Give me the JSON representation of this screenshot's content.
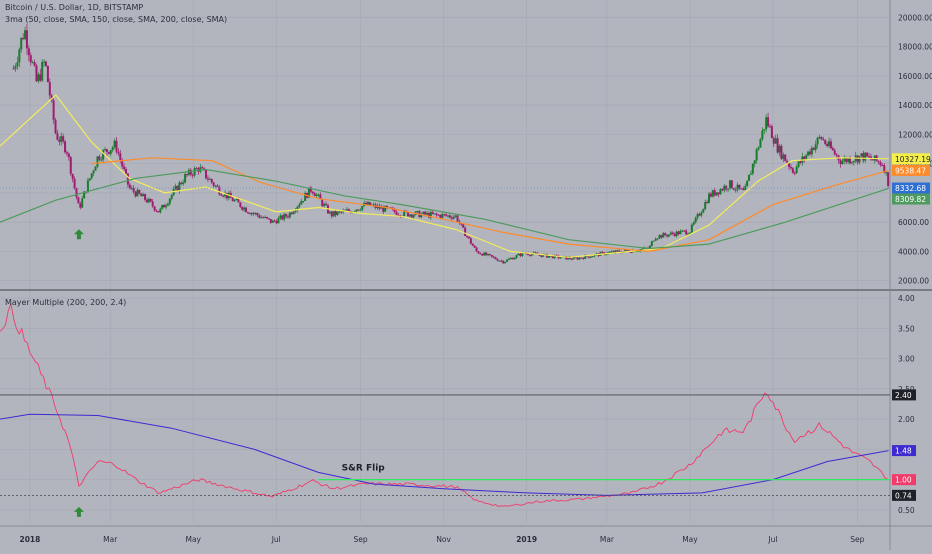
{
  "price_pane": {
    "title": "Bitcoin / U.S. Dollar, 1D, BITSTAMP",
    "indicator": "3ma (50, close, SMA, 150, close, SMA, 200, close, SMA)"
  },
  "mayer_pane": {
    "indicator": "Mayer Multiple (200, 200, 2.4)",
    "annotation": "S&R Flip"
  },
  "colors": {
    "background": "#b2b5be",
    "candle_up": "#1a7a2e",
    "candle_down": "#9c1d6e",
    "sma50": "#f3ec5a",
    "sma150": "#ff8a2a",
    "sma200": "#4f9a5e",
    "mayer_line": "#f23a6a",
    "mayer_ma": "#3d2bd0",
    "sr_line": "#2ee85c",
    "arrow": "#2e8b3a"
  },
  "chart_data": [
    {
      "type": "candlestick",
      "title": "Bitcoin / U.S. Dollar, 1D, BITSTAMP",
      "x_ticks": [
        "2018",
        "Mar",
        "May",
        "Jul",
        "Sep",
        "Nov",
        "2019",
        "Mar",
        "May",
        "Jul",
        "Sep"
      ],
      "y_ticks": [
        "20000.00",
        "18000.00",
        "16000.00",
        "14000.00",
        "12000.00",
        "10000.00",
        "8000.00",
        "6000.00",
        "4000.00",
        "2000.00"
      ],
      "ylim": [
        1500,
        20500
      ],
      "price_path": [
        [
          "2017-12-20",
          16500
        ],
        [
          "2017-12-28",
          19200
        ],
        [
          "2018-01-06",
          15500
        ],
        [
          "2018-01-12",
          17000
        ],
        [
          "2018-01-20",
          12000
        ],
        [
          "2018-01-28",
          11000
        ],
        [
          "2018-02-06",
          6900
        ],
        [
          "2018-02-12",
          8500
        ],
        [
          "2018-02-20",
          10500
        ],
        [
          "2018-03-05",
          11300
        ],
        [
          "2018-03-15",
          8300
        ],
        [
          "2018-03-28",
          7500
        ],
        [
          "2018-04-06",
          6700
        ],
        [
          "2018-04-25",
          9100
        ],
        [
          "2018-05-05",
          9700
        ],
        [
          "2018-05-20",
          8200
        ],
        [
          "2018-06-10",
          6800
        ],
        [
          "2018-06-28",
          6000
        ],
        [
          "2018-07-10",
          6500
        ],
        [
          "2018-07-27",
          8300
        ],
        [
          "2018-08-10",
          6500
        ],
        [
          "2018-08-25",
          6800
        ],
        [
          "2018-09-05",
          7200
        ],
        [
          "2018-10-01",
          6600
        ],
        [
          "2018-11-10",
          6400
        ],
        [
          "2018-11-15",
          5500
        ],
        [
          "2018-11-25",
          4000
        ],
        [
          "2018-12-15",
          3300
        ],
        [
          "2018-12-30",
          3900
        ],
        [
          "2019-01-15",
          3700
        ],
        [
          "2019-02-05",
          3500
        ],
        [
          "2019-03-01",
          3900
        ],
        [
          "2019-04-01",
          4200
        ],
        [
          "2019-04-05",
          5000
        ],
        [
          "2019-05-01",
          5400
        ],
        [
          "2019-05-15",
          7800
        ],
        [
          "2019-05-30",
          8600
        ],
        [
          "2019-06-10",
          8000
        ],
        [
          "2019-06-26",
          13000
        ],
        [
          "2019-07-05",
          11000
        ],
        [
          "2019-07-16",
          9500
        ],
        [
          "2019-08-05",
          11800
        ],
        [
          "2019-08-20",
          10200
        ],
        [
          "2019-09-05",
          10500
        ],
        [
          "2019-09-20",
          10000
        ],
        [
          "2019-09-24",
          8600
        ]
      ],
      "series": [
        {
          "name": "SMA 50",
          "values": [
            [
              "2017-12-10",
              11200
            ],
            [
              "2018-01-20",
              14700
            ],
            [
              "2018-02-15",
              11500
            ],
            [
              "2018-03-15",
              9000
            ],
            [
              "2018-04-10",
              8000
            ],
            [
              "2018-05-10",
              8400
            ],
            [
              "2018-06-10",
              7400
            ],
            [
              "2018-07-01",
              6700
            ],
            [
              "2018-08-01",
              7000
            ],
            [
              "2018-09-01",
              6600
            ],
            [
              "2018-10-01",
              6400
            ],
            [
              "2018-11-10",
              5500
            ],
            [
              "2018-12-20",
              4000
            ],
            [
              "2019-02-01",
              3600
            ],
            [
              "2019-04-10",
              4200
            ],
            [
              "2019-05-15",
              5800
            ],
            [
              "2019-06-20",
              8800
            ],
            [
              "2019-07-15",
              10200
            ],
            [
              "2019-08-20",
              10400
            ],
            [
              "2019-09-24",
              10327.19
            ]
          ]
        },
        {
          "name": "SMA 150",
          "values": [
            [
              "2018-02-15",
              10000
            ],
            [
              "2018-04-01",
              10400
            ],
            [
              "2018-05-15",
              10200
            ],
            [
              "2018-06-20",
              8700
            ],
            [
              "2018-08-01",
              7600
            ],
            [
              "2018-09-20",
              7000
            ],
            [
              "2018-11-01",
              6200
            ],
            [
              "2018-12-15",
              5300
            ],
            [
              "2019-02-01",
              4500
            ],
            [
              "2019-04-01",
              4000
            ],
            [
              "2019-05-15",
              4800
            ],
            [
              "2019-07-01",
              7200
            ],
            [
              "2019-08-15",
              8500
            ],
            [
              "2019-09-24",
              9538.47
            ]
          ]
        },
        {
          "name": "SMA 200",
          "values": [
            [
              "2017-12-10",
              6000
            ],
            [
              "2018-01-20",
              7500
            ],
            [
              "2018-03-20",
              9000
            ],
            [
              "2018-05-10",
              9600
            ],
            [
              "2018-07-01",
              8800
            ],
            [
              "2018-08-20",
              7800
            ],
            [
              "2018-10-01",
              7200
            ],
            [
              "2018-12-01",
              6200
            ],
            [
              "2019-02-01",
              4800
            ],
            [
              "2019-04-01",
              4200
            ],
            [
              "2019-05-15",
              4500
            ],
            [
              "2019-07-10",
              6000
            ],
            [
              "2019-08-25",
              7400
            ],
            [
              "2019-09-24",
              8309.82
            ]
          ]
        }
      ],
      "last_price_label": "8332.68",
      "price_labels": [
        "10327.19",
        "9538.47",
        "8332.68",
        "8309.82"
      ],
      "marker": {
        "date": "2018-02-06",
        "type": "up-arrow"
      }
    },
    {
      "type": "line",
      "title": "Mayer Multiple (200, 200, 2.4)",
      "y_ticks": [
        "4.00",
        "3.50",
        "3.00",
        "2.50",
        "2.00",
        "1.50",
        "1.00",
        "0.50"
      ],
      "ylim": [
        0.3,
        4.1
      ],
      "series": [
        {
          "name": "Mayer Multiple",
          "values": [
            [
              "2017-12-10",
              3.5
            ],
            [
              "2017-12-18",
              3.8
            ],
            [
              "2017-12-28",
              3.3
            ],
            [
              "2018-01-10",
              2.7
            ],
            [
              "2018-01-20",
              2.2
            ],
            [
              "2018-01-30",
              1.6
            ],
            [
              "2018-02-06",
              0.9
            ],
            [
              "2018-02-20",
              1.3
            ],
            [
              "2018-03-05",
              1.25
            ],
            [
              "2018-03-20",
              1.0
            ],
            [
              "2018-04-06",
              0.78
            ],
            [
              "2018-05-05",
              1.0
            ],
            [
              "2018-06-01",
              0.85
            ],
            [
              "2018-06-28",
              0.72
            ],
            [
              "2018-07-28",
              0.98
            ],
            [
              "2018-08-12",
              0.85
            ],
            [
              "2018-09-05",
              0.93
            ],
            [
              "2018-10-10",
              0.92
            ],
            [
              "2018-11-10",
              0.88
            ],
            [
              "2018-11-25",
              0.65
            ],
            [
              "2018-12-15",
              0.55
            ],
            [
              "2019-01-10",
              0.64
            ],
            [
              "2019-02-10",
              0.68
            ],
            [
              "2019-03-20",
              0.78
            ],
            [
              "2019-04-10",
              0.95
            ],
            [
              "2019-05-01",
              1.25
            ],
            [
              "2019-05-25",
              1.8
            ],
            [
              "2019-06-10",
              1.8
            ],
            [
              "2019-06-26",
              2.5
            ],
            [
              "2019-07-16",
              1.65
            ],
            [
              "2019-08-05",
              1.9
            ],
            [
              "2019-08-25",
              1.5
            ],
            [
              "2019-09-10",
              1.3
            ],
            [
              "2019-09-24",
              1.0
            ]
          ]
        },
        {
          "name": "Mayer Multiple MA",
          "values": [
            [
              "2017-12-10",
              2.0
            ],
            [
              "2018-01-01",
              2.08
            ],
            [
              "2018-02-20",
              2.06
            ],
            [
              "2018-04-15",
              1.85
            ],
            [
              "2018-06-15",
              1.5
            ],
            [
              "2018-08-01",
              1.12
            ],
            [
              "2018-09-10",
              0.93
            ],
            [
              "2018-11-01",
              0.85
            ],
            [
              "2019-01-01",
              0.78
            ],
            [
              "2019-03-01",
              0.74
            ],
            [
              "2019-05-10",
              0.78
            ],
            [
              "2019-07-01",
              1.0
            ],
            [
              "2019-08-10",
              1.3
            ],
            [
              "2019-09-24",
              1.48
            ]
          ]
        }
      ],
      "hlines": [
        2.4,
        1.0,
        0.74
      ],
      "value_labels": [
        "2.40",
        "1.48",
        "1.00",
        "0.74"
      ],
      "annotation": "S&R Flip",
      "marker": {
        "date": "2018-02-06",
        "type": "up-arrow"
      }
    }
  ]
}
